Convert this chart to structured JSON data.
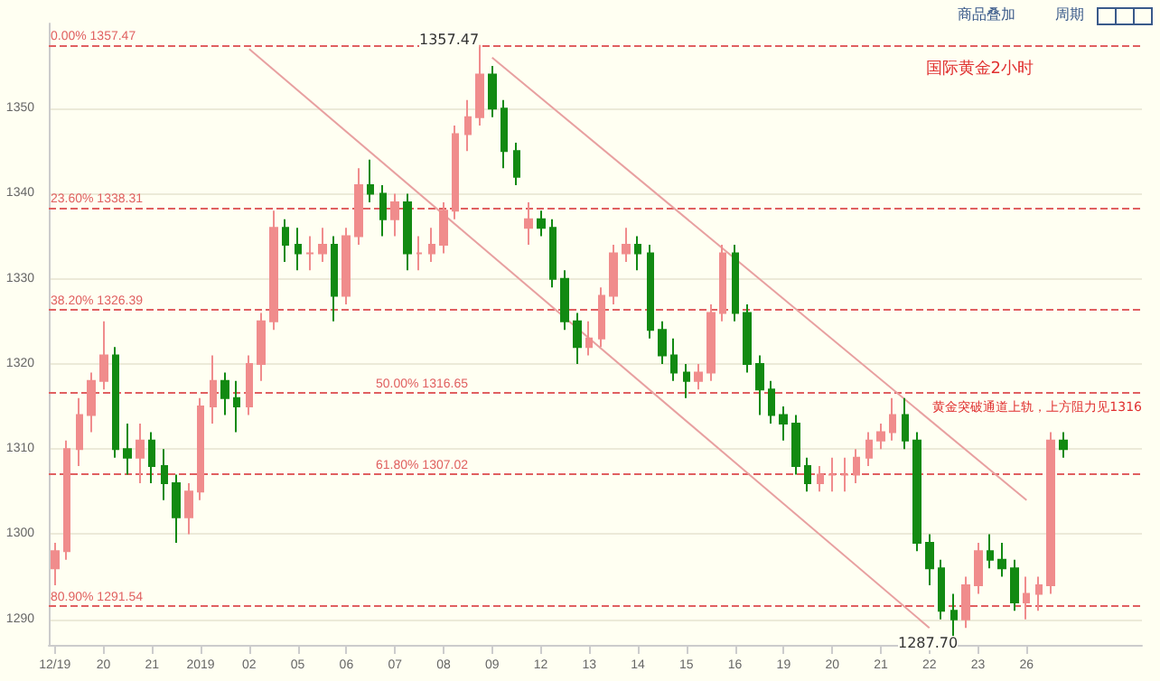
{
  "chart_data": {
    "type": "candlestick",
    "categories": [
      "12/19",
      null,
      null,
      null,
      "20",
      null,
      null,
      null,
      "21",
      null,
      null,
      null,
      "2019",
      null,
      null,
      null,
      "02",
      null,
      null,
      null,
      "05",
      null,
      null,
      null,
      "06",
      null,
      null,
      null,
      "07",
      null,
      null,
      null,
      "08",
      null,
      null,
      null,
      "09",
      null,
      null,
      null,
      "12",
      null,
      null,
      null,
      "13",
      null,
      null,
      null,
      "14",
      null,
      null,
      null,
      "15",
      null,
      null,
      null,
      "16",
      null,
      null,
      null,
      "19",
      null,
      null,
      null,
      "20",
      null,
      null,
      null,
      "21",
      null,
      null,
      null,
      "22",
      null,
      null,
      null,
      "23",
      null,
      null,
      null,
      "26",
      null,
      null,
      null,
      null,
      null,
      null,
      null,
      null,
      null
    ],
    "series": [
      {
        "color": "#f08c8c",
        "colors": [
          "#f08c8c",
          "#f08c8c",
          "#f08c8c",
          "#f08c8c",
          "#f08c8c",
          "#128a12",
          "#128a12",
          "#f08c8c",
          "#128a12",
          "#128a12",
          "#128a12",
          "#f08c8c",
          "#f08c8c",
          "#f08c8c",
          "#128a12",
          "#128a12",
          "#f08c8c",
          "#f08c8c",
          "#f08c8c",
          "#128a12",
          "#128a12",
          "#f08c8c",
          "#f08c8c",
          "#128a12",
          "#f08c8c",
          "#f08c8c",
          "#128a12",
          "#128a12",
          "#f08c8c",
          "#128a12",
          "#f08c8c",
          "#f08c8c",
          "#f08c8c",
          "#f08c8c",
          "#f08c8c",
          "#f08c8c",
          "#128a12",
          "#128a12",
          "#128a12",
          "#f08c8c",
          "#128a12",
          "#128a12",
          "#128a12",
          "#128a12",
          "#f08c8c",
          "#f08c8c",
          "#f08c8c",
          "#f08c8c",
          "#128a12",
          "#128a12",
          "#128a12",
          "#128a12",
          "#128a12",
          "#f08c8c",
          "#f08c8c",
          "#f08c8c",
          "#128a12",
          "#128a12",
          "#128a12",
          "#128a12",
          "#128a12",
          "#128a12",
          "#128a12",
          "#f08c8c",
          "#f08c8c",
          "#f08c8c",
          "#f08c8c",
          "#f08c8c",
          "#f08c8c",
          "#f08c8c",
          "#128a12",
          "#128a12",
          "#128a12",
          "#128a12",
          "#128a12",
          "#f08c8c",
          "#f08c8c",
          "#128a12",
          "#128a12",
          "#128a12",
          "#f08c8c",
          "#f08c8c",
          "#f08c8c",
          "#128a12",
          null,
          null,
          null,
          null,
          null,
          null
        ],
        "ohlc": [
          [
            1296,
            1299,
            1294,
            1298
          ],
          [
            1298,
            1311,
            1297,
            1310
          ],
          [
            1310,
            1316,
            1308,
            1314
          ],
          [
            1314,
            1319,
            1312,
            1318
          ],
          [
            1318,
            1325,
            1317,
            1321
          ],
          [
            1321,
            1322,
            1309,
            1310
          ],
          [
            1310,
            1313,
            1307,
            1309
          ],
          [
            1309,
            1313,
            1306,
            1311
          ],
          [
            1311,
            1312,
            1306,
            1308
          ],
          [
            1308,
            1310,
            1304,
            1306
          ],
          [
            1306,
            1307,
            1299,
            1302
          ],
          [
            1302,
            1306,
            1300,
            1305
          ],
          [
            1305,
            1316,
            1304,
            1315
          ],
          [
            1315,
            1321,
            1313,
            1318
          ],
          [
            1318,
            1319,
            1314,
            1316
          ],
          [
            1316,
            1318,
            1312,
            1315
          ],
          [
            1315,
            1321,
            1314,
            1320
          ],
          [
            1320,
            1326,
            1318,
            1325
          ],
          [
            1325,
            1338,
            1324,
            1336
          ],
          [
            1336,
            1337,
            1332,
            1334
          ],
          [
            1334,
            1336,
            1331,
            1333
          ],
          [
            1333,
            1335,
            1331,
            1333
          ],
          [
            1333,
            1336,
            1332,
            1334
          ],
          [
            1334,
            1335,
            1325,
            1328
          ],
          [
            1328,
            1336,
            1327,
            1335
          ],
          [
            1335,
            1343,
            1334,
            1341
          ],
          [
            1341,
            1344,
            1339,
            1340
          ],
          [
            1340,
            1341,
            1335,
            1337
          ],
          [
            1337,
            1340,
            1335,
            1339
          ],
          [
            1339,
            1340,
            1331,
            1333
          ],
          [
            1333,
            1335,
            1331,
            1333
          ],
          [
            1333,
            1336,
            1332,
            1334
          ],
          [
            1334,
            1339,
            1333,
            1338
          ],
          [
            1338,
            1348,
            1337,
            1347
          ],
          [
            1347,
            1351,
            1345,
            1349
          ],
          [
            1349,
            1357.47,
            1348,
            1354
          ],
          [
            1354,
            1355,
            1349,
            1350
          ],
          [
            1350,
            1351,
            1343,
            1345
          ],
          [
            1345,
            1346,
            1341,
            1342
          ],
          [
            1336,
            1339,
            1334,
            1337
          ],
          [
            1337,
            1338,
            1335,
            1336
          ],
          [
            1336,
            1337,
            1329,
            1330
          ],
          [
            1330,
            1331,
            1324,
            1325
          ],
          [
            1325,
            1326,
            1320,
            1322
          ],
          [
            1322,
            1325,
            1321,
            1323
          ],
          [
            1323,
            1329,
            1322,
            1328
          ],
          [
            1328,
            1334,
            1327,
            1333
          ],
          [
            1333,
            1336,
            1332,
            1334
          ],
          [
            1334,
            1335,
            1331,
            1333
          ],
          [
            1333,
            1334,
            1323,
            1324
          ],
          [
            1324,
            1325,
            1320,
            1321
          ],
          [
            1321,
            1323,
            1318,
            1319
          ],
          [
            1319,
            1320,
            1316,
            1318
          ],
          [
            1318,
            1320,
            1317,
            1319
          ],
          [
            1319,
            1327,
            1318,
            1326
          ],
          [
            1326,
            1334,
            1325,
            1333
          ],
          [
            1333,
            1334,
            1325,
            1326
          ],
          [
            1326,
            1327,
            1319,
            1320
          ],
          [
            1320,
            1321,
            1314,
            1317
          ],
          [
            1317,
            1318,
            1313,
            1314
          ],
          [
            1314,
            1315,
            1311,
            1313
          ],
          [
            1313,
            1314,
            1307,
            1308
          ],
          [
            1308,
            1309,
            1305,
            1306
          ],
          [
            1306,
            1308,
            1305,
            1307
          ],
          [
            1307,
            1309,
            1305,
            1307
          ],
          [
            1307,
            1309,
            1305,
            1307
          ],
          [
            1307,
            1310,
            1306,
            1309
          ],
          [
            1309,
            1312,
            1308,
            1311
          ],
          [
            1311,
            1313,
            1310,
            1312
          ],
          [
            1312,
            1316,
            1311,
            1314
          ],
          [
            1314,
            1316,
            1310,
            1311
          ],
          [
            1311,
            1312,
            1298,
            1299
          ],
          [
            1299,
            1300,
            1294,
            1296
          ],
          [
            1296,
            1297,
            1290,
            1291
          ],
          [
            1291,
            1293,
            1287.7,
            1290
          ],
          [
            1290,
            1295,
            1289,
            1294
          ],
          [
            1294,
            1299,
            1293,
            1298
          ],
          [
            1298,
            1300,
            1296,
            1297
          ],
          [
            1297,
            1299,
            1295,
            1296
          ],
          [
            1296,
            1297,
            1291,
            1292
          ],
          [
            1292,
            1295,
            1290,
            1293
          ],
          [
            1293,
            1295,
            1291,
            1294
          ],
          [
            1294,
            1312,
            1293,
            1311
          ],
          [
            1311,
            1312,
            1309,
            1310
          ],
          null,
          null,
          null,
          null,
          null,
          null
        ]
      },
      {
        "type": "line",
        "color": "#e8a0a0",
        "x": [
          "09",
          "26"
        ],
        "values": [
          1356,
          1304
        ]
      },
      {
        "type": "line",
        "color": "#e8a0a0",
        "x": [
          "02",
          "22"
        ],
        "values": [
          1357,
          1289
        ]
      }
    ],
    "ylim": [
      1287,
      1360
    ],
    "yticks": [
      1290,
      1300,
      1310,
      1320,
      1330,
      1340,
      1350
    ],
    "grid": "y",
    "ref_lines": [
      {
        "axis": "y",
        "value": 1357.47,
        "label": "0.00% 1357.47",
        "color": "#e06060",
        "line_style": "dashed"
      },
      {
        "axis": "y",
        "value": 1338.31,
        "label": "23.60% 1338.31",
        "color": "#e06060",
        "line_style": "dashed"
      },
      {
        "axis": "y",
        "value": 1326.39,
        "label": "38.20% 1326.39",
        "color": "#e06060",
        "line_style": "dashed"
      },
      {
        "axis": "y",
        "value": 1316.65,
        "label": "50.00% 1316.65",
        "color": "#e06060",
        "line_style": "dashed"
      },
      {
        "axis": "y",
        "value": 1307.02,
        "label": "61.80% 1307.02",
        "color": "#e06060",
        "line_style": "dashed"
      },
      {
        "axis": "y",
        "value": 1291.54,
        "label": "80.90% 1291.54",
        "color": "#e06060",
        "line_style": "dashed"
      }
    ],
    "annotations": [
      "1357.47",
      "1287.70",
      "国际黄金2小时",
      "黄金突破通道上轨，上方阻力见1316",
      "商品叠加",
      "周期"
    ]
  }
}
